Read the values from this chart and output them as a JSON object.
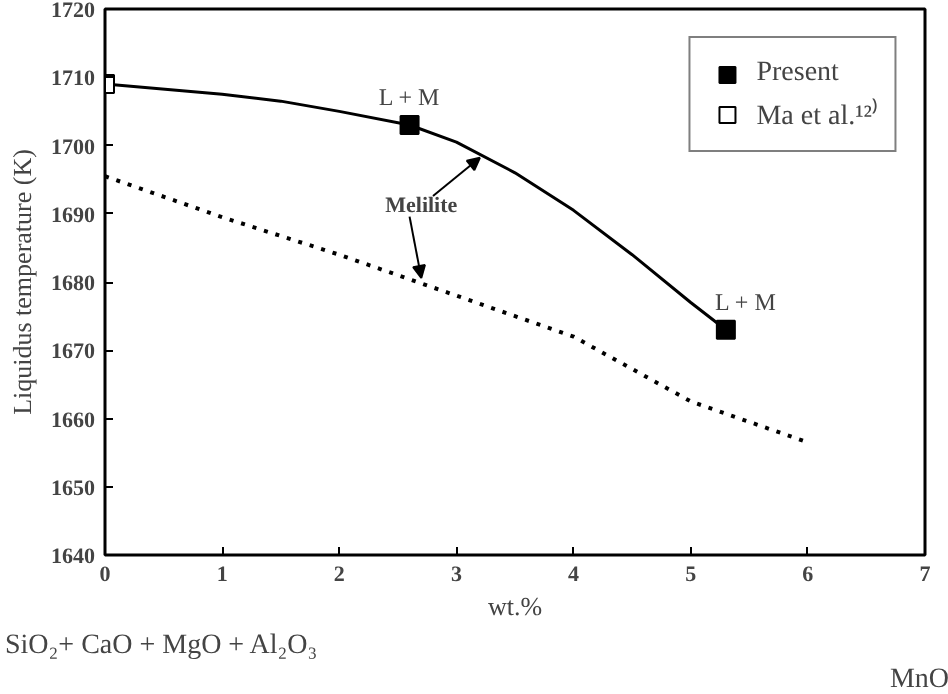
{
  "chart_data": {
    "type": "line",
    "xlabel": "wt.%",
    "ylabel": "Liquidus temperature (K)",
    "xlim": [
      0,
      7
    ],
    "xticks": [
      0,
      1,
      2,
      3,
      4,
      5,
      6,
      7
    ],
    "ylim": [
      1640,
      1720
    ],
    "yticks": [
      1640,
      1650,
      1660,
      1670,
      1680,
      1690,
      1700,
      1710,
      1720
    ],
    "grid": false,
    "legend": "top right",
    "series": [
      {
        "line_style": "solid",
        "color": "#000000",
        "x": [
          0,
          1,
          1.5,
          2,
          2.6,
          3,
          3.5,
          4,
          4.5,
          5,
          5.3
        ],
        "values": [
          1709,
          1707.5,
          1706.5,
          1705,
          1703,
          1700.5,
          1696,
          1690.5,
          1684,
          1677,
          1673
        ]
      },
      {
        "line_style": "dotted",
        "color": "#000000",
        "x": [
          0,
          1,
          2,
          3,
          4,
          5,
          6
        ],
        "values": [
          1695.5,
          1689.5,
          1684,
          1678,
          1672,
          1662.5,
          1656.5
        ]
      },
      {
        "type": "scatter",
        "marker": "square",
        "name": "Present",
        "color": "#000000",
        "x": [
          2.6,
          5.3
        ],
        "values": [
          1703,
          1673
        ]
      },
      {
        "type": "scatter",
        "marker": "square",
        "name": "Ma et al.¹²⁾",
        "color": "#ffffff",
        "x": [
          0
        ],
        "values": [
          1709
        ]
      }
    ],
    "annotations": [
      "SiO₂+ CaO + MgO + Al₂O₃",
      "MnO",
      {
        "text": "L + M",
        "x": 2.6,
        "y": 1703
      },
      {
        "text": "L + M",
        "x": 5.3,
        "y": 1673
      },
      {
        "text": "Melilite",
        "x": 3.2,
        "y": 1698.7
      }
    ]
  }
}
